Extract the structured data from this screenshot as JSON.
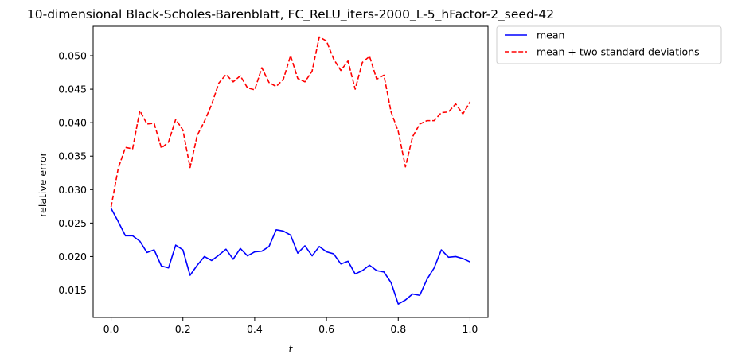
{
  "chart_data": {
    "type": "line",
    "title": "10-dimensional Black-Scholes-Barenblatt, FC_ReLU_iters-2000_L-5_hFactor-2_seed-42",
    "xlabel": "t",
    "ylabel": "relative error",
    "xlim": [
      -0.05,
      1.05
    ],
    "ylim": [
      0.0109,
      0.0544
    ],
    "xticks": [
      0.0,
      0.2,
      0.4,
      0.6,
      0.8,
      1.0
    ],
    "xtick_labels": [
      "0.0",
      "0.2",
      "0.4",
      "0.6",
      "0.8",
      "1.0"
    ],
    "yticks": [
      0.015,
      0.02,
      0.025,
      0.03,
      0.035,
      0.04,
      0.045,
      0.05
    ],
    "ytick_labels": [
      "0.015",
      "0.020",
      "0.025",
      "0.030",
      "0.035",
      "0.040",
      "0.045",
      "0.050"
    ],
    "grid": false,
    "legend_position": "outside-top-right",
    "x": [
      0.0,
      0.02,
      0.04,
      0.06,
      0.08,
      0.1,
      0.12,
      0.14,
      0.16,
      0.18,
      0.2,
      0.22,
      0.24,
      0.26,
      0.28,
      0.3,
      0.32,
      0.34,
      0.36,
      0.38,
      0.4,
      0.42,
      0.44,
      0.46,
      0.48,
      0.5,
      0.52,
      0.54,
      0.56,
      0.58,
      0.6,
      0.62,
      0.64,
      0.66,
      0.68,
      0.7,
      0.72,
      0.74,
      0.76,
      0.78,
      0.8,
      0.82,
      0.84,
      0.86,
      0.88,
      0.9,
      0.92,
      0.94,
      0.96,
      0.98,
      1.0
    ],
    "series": [
      {
        "name": "mean",
        "color": "#0000ff",
        "linestyle": "solid",
        "values": [
          0.0272,
          0.0252,
          0.0231,
          0.0231,
          0.0223,
          0.0206,
          0.021,
          0.0186,
          0.0183,
          0.0217,
          0.021,
          0.0172,
          0.0187,
          0.02,
          0.0194,
          0.0202,
          0.0211,
          0.0196,
          0.0212,
          0.0201,
          0.0207,
          0.0208,
          0.0215,
          0.024,
          0.0238,
          0.0232,
          0.0205,
          0.0216,
          0.0201,
          0.0215,
          0.0207,
          0.0204,
          0.0189,
          0.0193,
          0.0174,
          0.0179,
          0.0187,
          0.0179,
          0.0177,
          0.0161,
          0.0129,
          0.0135,
          0.0144,
          0.0142,
          0.0166,
          0.0183,
          0.021,
          0.0199,
          0.02,
          0.0197,
          0.0192
        ]
      },
      {
        "name": "mean + two standard deviations",
        "color": "#ff0000",
        "linestyle": "dashed",
        "values": [
          0.0274,
          0.0332,
          0.0363,
          0.0361,
          0.0418,
          0.0398,
          0.0399,
          0.0362,
          0.0371,
          0.0405,
          0.0389,
          0.0333,
          0.0381,
          0.0402,
          0.0427,
          0.0459,
          0.0472,
          0.0461,
          0.047,
          0.0452,
          0.0449,
          0.0482,
          0.046,
          0.0454,
          0.0465,
          0.05,
          0.0466,
          0.0461,
          0.0477,
          0.0528,
          0.0522,
          0.0495,
          0.0478,
          0.0492,
          0.045,
          0.049,
          0.0499,
          0.0465,
          0.0471,
          0.0416,
          0.0387,
          0.0334,
          0.0379,
          0.0398,
          0.0403,
          0.0403,
          0.0415,
          0.0416,
          0.0428,
          0.0413,
          0.0431
        ]
      }
    ]
  }
}
